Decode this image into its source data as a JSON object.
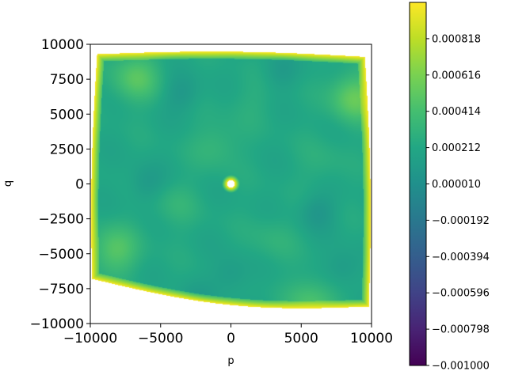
{
  "chart_data": {
    "type": "heatmap",
    "title": "",
    "xlabel": "p",
    "ylabel": "q",
    "xlim": [
      -10000,
      10000
    ],
    "ylim": [
      -10000,
      10000
    ],
    "x_ticks": [
      -10000,
      -5000,
      0,
      5000,
      10000
    ],
    "x_tick_labels": [
      "−10000",
      "−5000",
      "0",
      "5000",
      "10000"
    ],
    "y_ticks": [
      10000,
      7500,
      5000,
      2500,
      0,
      -2500,
      -5000,
      -7500,
      -10000
    ],
    "y_tick_labels": [
      "10000",
      "7500",
      "5000",
      "2500",
      "0",
      "−2500",
      "−5000",
      "−7500",
      "−10000"
    ],
    "grid": false,
    "colormap": "viridis",
    "colorbar": {
      "range": [
        -0.001,
        0.00102
      ],
      "ticks": [
        0.000818,
        0.000616,
        0.000414,
        0.000212,
        1e-05,
        -0.000192,
        -0.000394,
        -0.000596,
        -0.000798,
        -0.001
      ],
      "tick_labels": [
        "0.000818",
        "0.000616",
        "0.000414",
        "0.000212",
        "0.000010",
        "−0.000192",
        "−0.000394",
        "−0.000596",
        "−0.000798",
        "−0.001000"
      ]
    },
    "field": {
      "background_value": 0.00021,
      "rim_value": 0.00101,
      "center_hole": {
        "p": 0,
        "q": 0
      },
      "boundary_corners": {
        "top_left": [
          -9500,
          9300
        ],
        "top_right": [
          9500,
          9100
        ],
        "bottom_right": [
          9800,
          -8800
        ],
        "bottom_left": [
          -9800,
          -6800
        ]
      },
      "blobs": [
        {
          "p": -6800,
          "q": 7600,
          "value": 0.00048
        },
        {
          "p": 8800,
          "q": 6200,
          "value": 0.00055
        },
        {
          "p": -8300,
          "q": -4800,
          "value": 0.00048
        },
        {
          "p": -1000,
          "q": 2800,
          "value": 0.00034
        },
        {
          "p": 5800,
          "q": -8500,
          "value": 0.00045
        },
        {
          "p": 3000,
          "q": -4000,
          "value": 0.0003
        },
        {
          "p": 6500,
          "q": 1500,
          "value": 0.00028
        },
        {
          "p": -4000,
          "q": -1500,
          "value": 0.00031
        },
        {
          "p": 1500,
          "q": 6000,
          "value": 0.00027
        }
      ],
      "troughs": [
        {
          "p": -3500,
          "q": 6500,
          "value": 8e-05
        },
        {
          "p": 3500,
          "q": 8000,
          "value": 0.00011
        },
        {
          "p": -6000,
          "q": 0,
          "value": 9e-05
        },
        {
          "p": 6200,
          "q": -2000,
          "value": 7e-05
        },
        {
          "p": 0,
          "q": -6500,
          "value": 0.0001
        },
        {
          "p": -2500,
          "q": -8500,
          "value": 0.00012
        },
        {
          "p": 8000,
          "q": -6000,
          "value": 9e-05
        }
      ]
    }
  }
}
